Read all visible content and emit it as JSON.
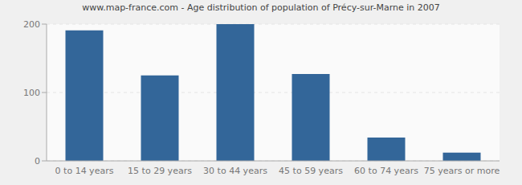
{
  "chart_data": {
    "type": "bar",
    "title": "www.map-france.com - Age distribution of population of Précy-sur-Marne in 2007",
    "categories": [
      "0 to 14 years",
      "15 to 29 years",
      "30 to 44 years",
      "45 to 59 years",
      "60 to 74 years",
      "75 years or more"
    ],
    "values": [
      191,
      125,
      200,
      127,
      34,
      12
    ],
    "color": "#336699",
    "ylim": [
      0,
      200
    ],
    "yticks": [
      0,
      100,
      200
    ],
    "grid": true
  }
}
